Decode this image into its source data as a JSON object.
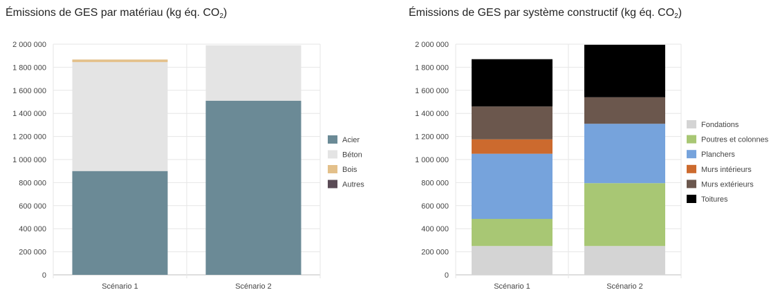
{
  "chart_data": [
    {
      "type": "bar",
      "stacked": true,
      "title": "Émissions de GES par matériau (kg éq. CO",
      "title_sub": "2",
      "title_end": ")",
      "categories": [
        "Scénario 1",
        "Scénario 2"
      ],
      "ylim": [
        0,
        2000000
      ],
      "yticks": [
        0,
        200000,
        400000,
        600000,
        800000,
        1000000,
        1200000,
        1400000,
        1600000,
        1800000,
        2000000
      ],
      "ytick_labels": [
        "0",
        "200 000",
        "400 000",
        "600 000",
        "800 000",
        "1 000 000",
        "1 200 000",
        "1 400 000",
        "1 600 000",
        "1 800 000",
        "2 000 000"
      ],
      "legend_position": "right",
      "grid": true,
      "series": [
        {
          "name": "Acier",
          "color": "#6b8a96",
          "values": [
            900000,
            1510000
          ]
        },
        {
          "name": "Béton",
          "color": "#e4e4e4",
          "values": [
            945000,
            480000
          ]
        },
        {
          "name": "Bois",
          "color": "#e3c08a",
          "values": [
            22000,
            0
          ]
        },
        {
          "name": "Autres",
          "color": "#5a4b55",
          "values": [
            0,
            0
          ]
        }
      ]
    },
    {
      "type": "bar",
      "stacked": true,
      "title": "Émissions de GES par système constructif (kg éq. CO",
      "title_sub": "2",
      "title_end": ")",
      "categories": [
        "Scénario 1",
        "Scénario 2"
      ],
      "ylim": [
        0,
        2000000
      ],
      "yticks": [
        0,
        200000,
        400000,
        600000,
        800000,
        1000000,
        1200000,
        1400000,
        1600000,
        1800000,
        2000000
      ],
      "ytick_labels": [
        "0",
        "200 000",
        "400 000",
        "600 000",
        "800 000",
        "1 000 000",
        "1 200 000",
        "1 400 000",
        "1 600 000",
        "1 800 000",
        "2 000 000"
      ],
      "legend_position": "right",
      "grid": true,
      "series": [
        {
          "name": "Fondations",
          "color": "#d4d4d4",
          "values": [
            250000,
            250000
          ]
        },
        {
          "name": "Poutres et colonnes",
          "color": "#a8c774",
          "values": [
            235000,
            545000
          ]
        },
        {
          "name": "Planchers",
          "color": "#76a3dc",
          "values": [
            565000,
            515000
          ]
        },
        {
          "name": "Murs intérieurs",
          "color": "#cc6a2e",
          "values": [
            125000,
            0
          ]
        },
        {
          "name": "Murs extérieurs",
          "color": "#6b574d",
          "values": [
            285000,
            230000
          ]
        },
        {
          "name": "Toitures",
          "color": "#000000",
          "values": [
            410000,
            455000
          ]
        }
      ]
    }
  ]
}
